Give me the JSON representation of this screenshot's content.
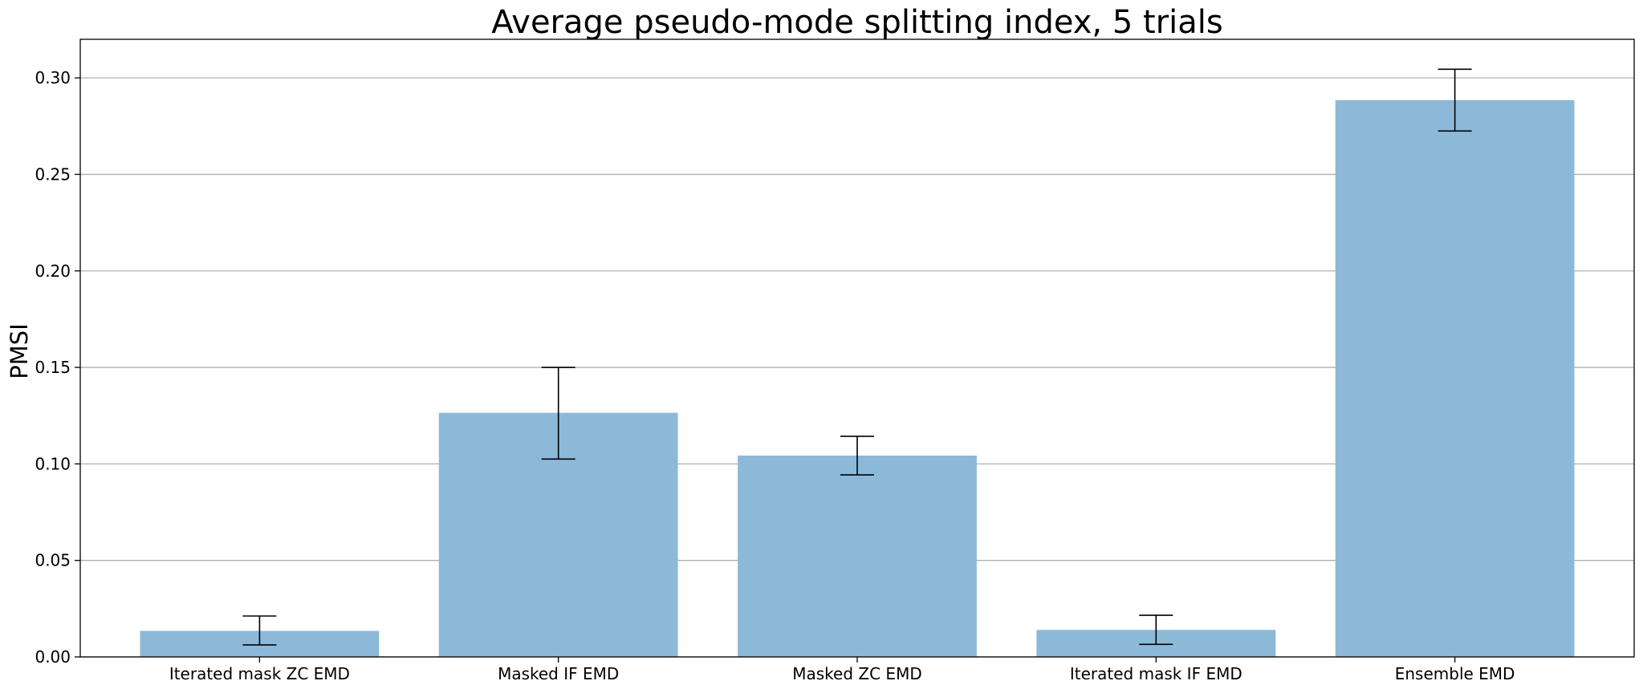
{
  "chart_data": {
    "type": "bar",
    "title": "Average pseudo-mode splitting index, 5 trials",
    "xlabel": "",
    "ylabel": "PMSI",
    "categories": [
      "Iterated mask ZC EMD",
      "Masked IF EMD",
      "Masked ZC EMD",
      "Iterated mask IF EMD",
      "Ensemble EMD"
    ],
    "values": [
      0.0135,
      0.1265,
      0.1043,
      0.014,
      0.2885
    ],
    "error_low": [
      0.0062,
      0.1025,
      0.0943,
      0.0065,
      0.2725
    ],
    "error_high": [
      0.0212,
      0.15,
      0.1143,
      0.0216,
      0.3045
    ],
    "ylim": [
      0,
      0.32
    ],
    "yticks": [
      "0.00",
      "0.05",
      "0.10",
      "0.15",
      "0.20",
      "0.25",
      "0.30"
    ],
    "grid": "horizontal",
    "colors": {
      "bar": "#8db9d9",
      "error_bar": "#000000",
      "grid": "#b0b0b0",
      "axes": "#000000"
    }
  }
}
